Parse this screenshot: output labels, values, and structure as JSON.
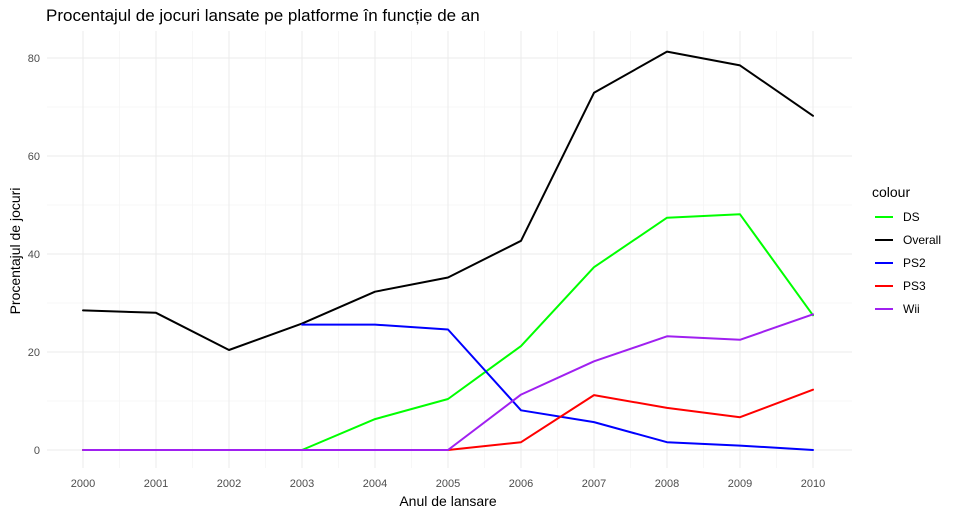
{
  "chart_data": {
    "type": "line",
    "title": "Procentajul de jocuri lansate pe platforme în funcție de an",
    "xlabel": "Anul de lansare",
    "ylabel": "Procentajul de jocuri",
    "x": [
      2000,
      2001,
      2002,
      2003,
      2004,
      2005,
      2006,
      2007,
      2008,
      2009,
      2010
    ],
    "xlim": [
      2000,
      2010
    ],
    "ylim": [
      0,
      82
    ],
    "yticks": [
      0,
      20,
      40,
      60,
      80
    ],
    "grid": true,
    "legend": {
      "title": "colour",
      "position": "right"
    },
    "series": [
      {
        "name": "DS",
        "color": "#00ff00",
        "values": [
          0,
          0,
          0,
          0,
          6.3,
          10.4,
          21.2,
          37.3,
          47.4,
          48.1,
          27.5
        ]
      },
      {
        "name": "Overall",
        "color": "#000000",
        "values": [
          28.5,
          28,
          20.4,
          25.8,
          32.3,
          35.2,
          42.7,
          72.9,
          81.3,
          78.5,
          68.2
        ]
      },
      {
        "name": "PS2",
        "color": "#0000ff",
        "values": [
          null,
          null,
          null,
          25.6,
          25.6,
          24.6,
          8.1,
          5.7,
          1.6,
          0.9,
          0
        ]
      },
      {
        "name": "PS3",
        "color": "#ff0000",
        "values": [
          0,
          0,
          0,
          0,
          0,
          0,
          1.6,
          11.2,
          8.6,
          6.7,
          12.3
        ]
      },
      {
        "name": "Wii",
        "color": "#a020f0",
        "values": [
          0,
          0,
          0,
          0,
          0,
          0,
          11.3,
          18.1,
          23.2,
          22.5,
          27.7
        ]
      }
    ]
  }
}
